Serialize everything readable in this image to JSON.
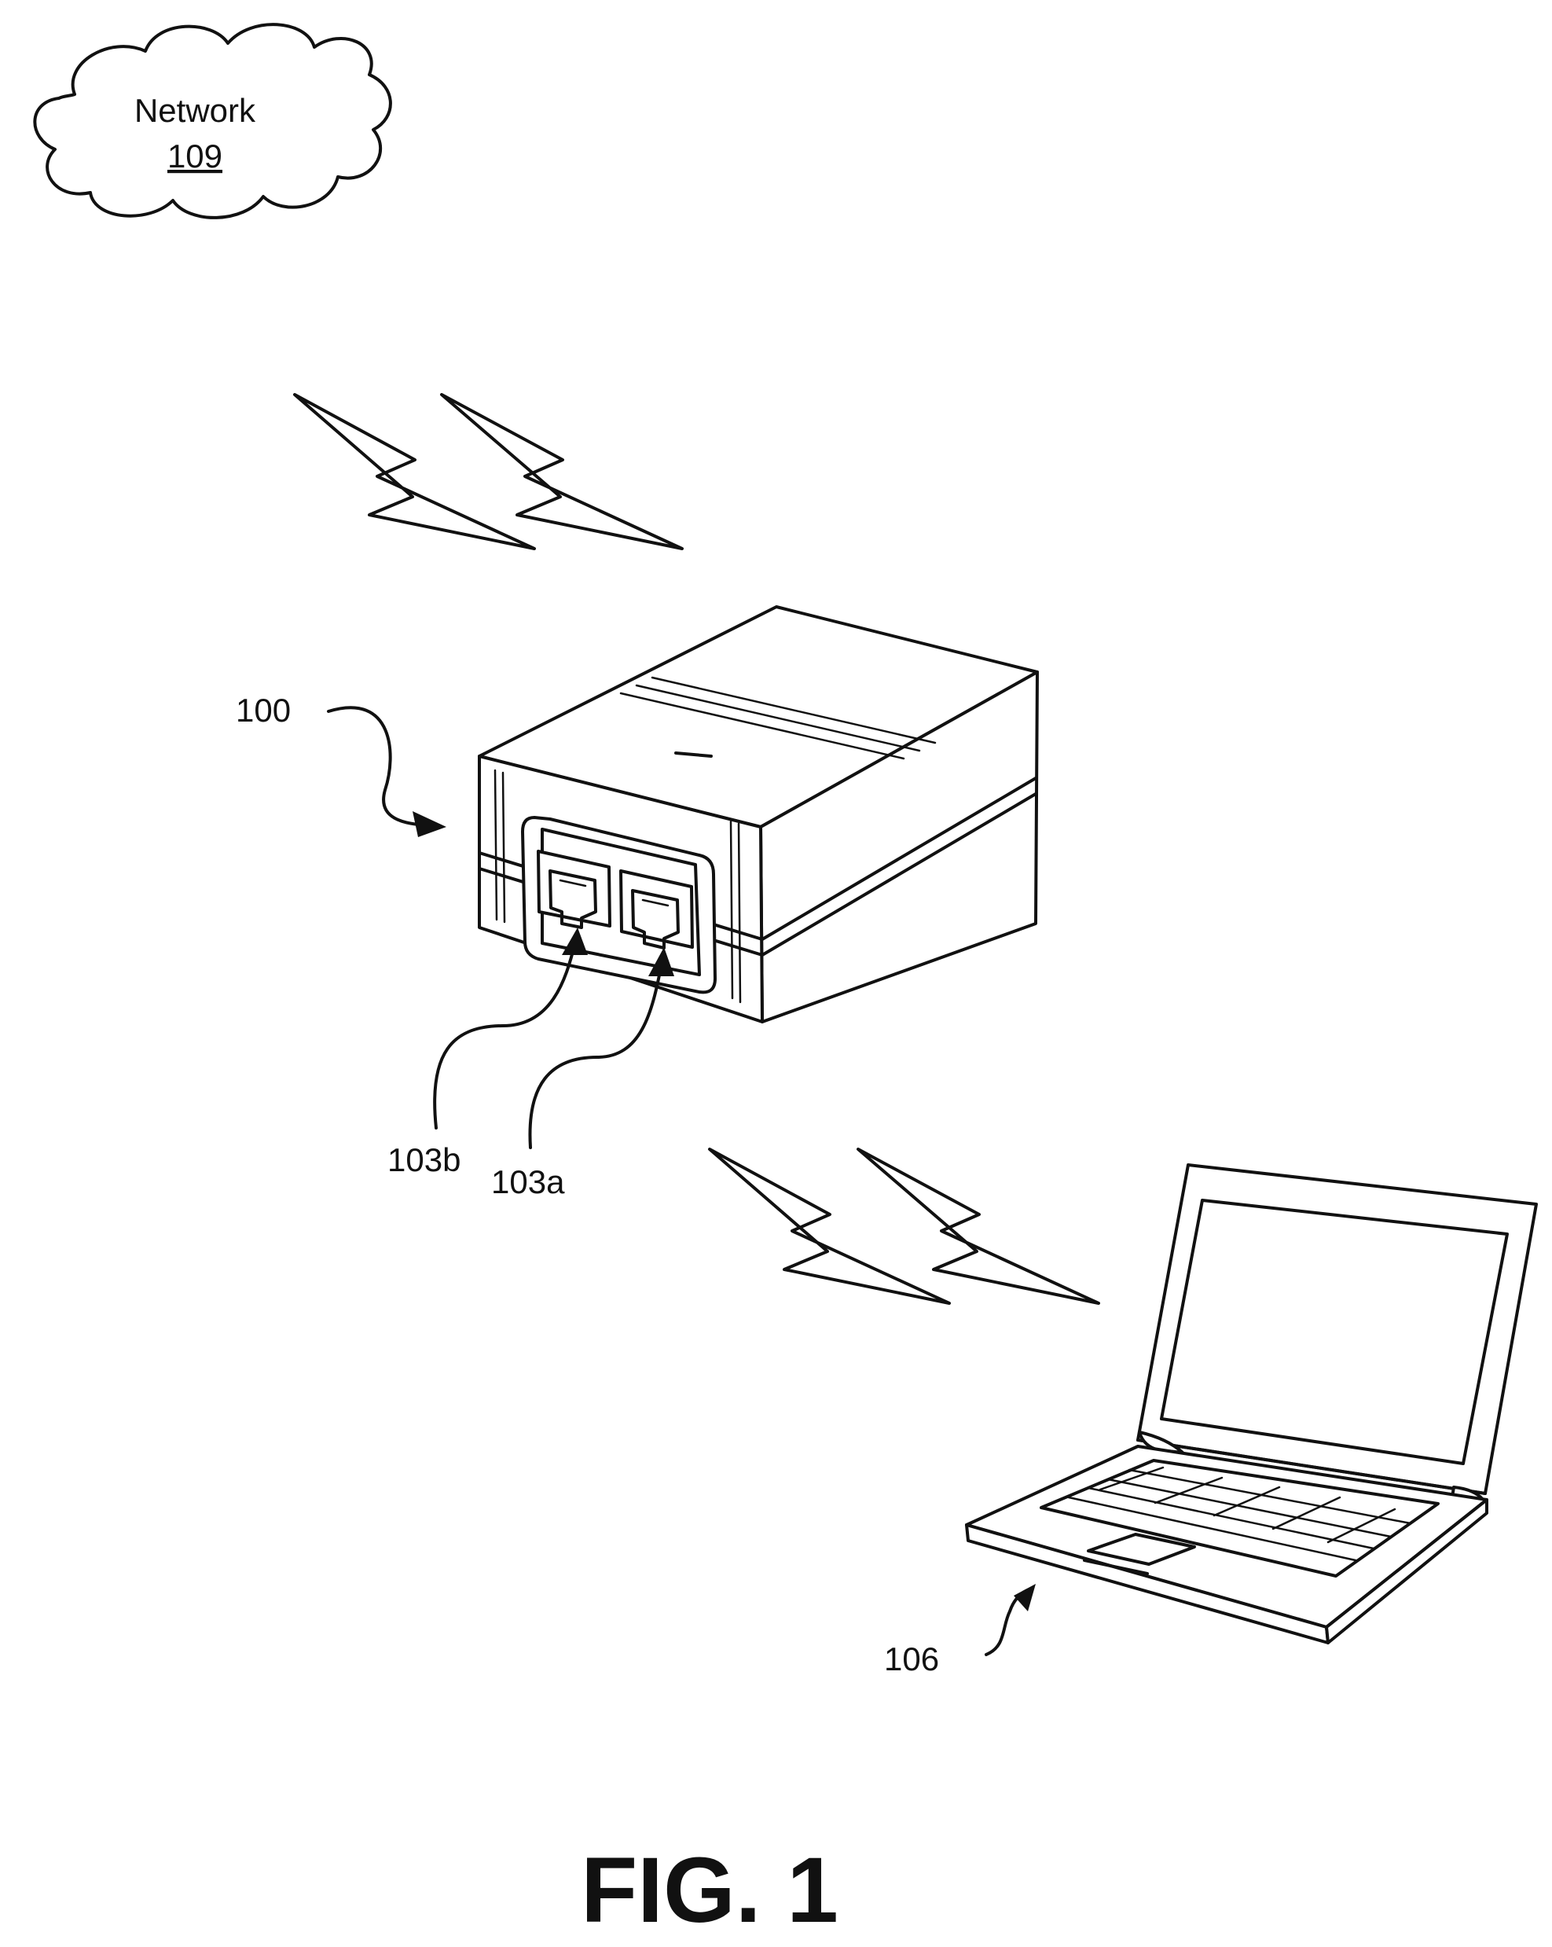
{
  "network": {
    "label": "Network",
    "ref": "109"
  },
  "device": {
    "ref": "100",
    "port_b_ref": "103b",
    "port_a_ref": "103a"
  },
  "client": {
    "ref": "106"
  },
  "caption": "FIG. 1",
  "colors": {
    "ink": "#111111",
    "paper": "#ffffff"
  }
}
